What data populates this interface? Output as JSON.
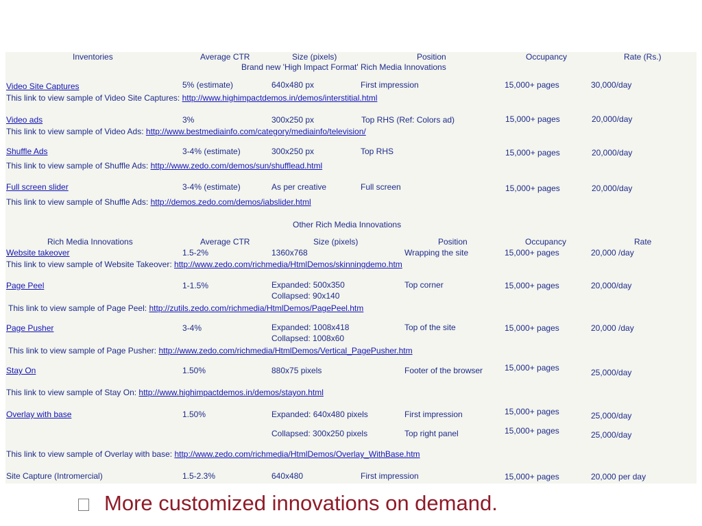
{
  "section1": {
    "headers": {
      "inventories": "Inventories",
      "ctr": "Average CTR",
      "size": "Size (pixels)",
      "position": "Position",
      "occupancy": "Occupancy",
      "rate": "Rate (Rs.)"
    },
    "title": "Brand new 'High Impact Format' Rich Media Innovations",
    "rows": [
      {
        "name": "Video Site Captures",
        "ctr": "5% (estimate)",
        "size": "640x480 px",
        "position": "First impression",
        "occupancy": "15,000+ pages",
        "rate": "30,000/day",
        "link_prefix": "This link to view sample of Video Site Captures:",
        "link_url": "http://www.highimpactdemos.in/demos/interstitial.html"
      },
      {
        "name": "Video ads",
        "ctr": "3%",
        "size": "300x250 px",
        "position": "Top RHS (Ref: Colors ad)",
        "occupancy": "15,000+ pages",
        "rate": "20,000/day",
        "link_prefix": "This link to view sample of Video Ads:",
        "link_url": "http://www.bestmediainfo.com/category/mediainfo/television/"
      },
      {
        "name": "Shuffle Ads",
        "ctr": "3-4% (estimate)",
        "size": "300x250 px",
        "position": "Top RHS",
        "occupancy": "15,000+ pages",
        "rate": "20,000/day",
        "link_prefix": "This link to view sample of Shuffle Ads:",
        "link_url": "http://www.zedo.com/demos/sun/shufflead.html"
      },
      {
        "name": "Full screen slider",
        "ctr": "3-4% (estimate)",
        "size": "As per creative",
        "position": "Full screen",
        "occupancy": "15,000+ pages",
        "rate": "20,000/day",
        "link_prefix": "This link to view sample of Shuffle Ads:",
        "link_url": "http://demos.zedo.com/demos/iabslider.html"
      }
    ]
  },
  "section2": {
    "title": "Other Rich Media Innovations",
    "headers": {
      "innovations": "Rich Media Innovations",
      "ctr": "Average CTR",
      "size": "Size (pixels)",
      "position": "Position",
      "occupancy": "Occupancy",
      "rate": "Rate"
    },
    "website_takeover": {
      "name": "Website takeover",
      "ctr": "1.5-2%",
      "size": "1360x768",
      "position": "Wrapping the site",
      "occupancy": "15,000+ pages",
      "rate": "20,000 /day",
      "link_prefix": "This link to view sample of Website Takeover:",
      "link_url": "http://www.zedo.com/richmedia/HtmlDemos/skinningdemo.htm"
    },
    "page_peel": {
      "name": "Page Peel",
      "ctr": "1-1.5%",
      "size_expanded": "Expanded: 500x350",
      "size_collapsed": "Collapsed: 90x140",
      "position": "Top corner",
      "occupancy": "15,000+ pages",
      "rate": "20,000/day",
      "link_prefix": "This link to view sample of Page Peel:",
      "link_url": "http://zutils.zedo.com/richmedia/HtmlDemos/PagePeel.htm"
    },
    "page_pusher": {
      "name": "Page Pusher",
      "ctr": "3-4%",
      "size_expanded": "Expanded: 1008x418",
      "size_collapsed": "Collapsed: 1008x60",
      "position": "Top of the site",
      "occupancy": "15,000+ pages",
      "rate": "20,000 /day",
      "link_prefix": "This link to view sample of Page Pusher:",
      "link_url": "http://www.zedo.com/richmedia/HtmlDemos/Vertical_PagePusher.htm"
    },
    "stay_on": {
      "name": "Stay On",
      "ctr": "1.50%",
      "size": "880x75 pixels",
      "position": "Footer of the browser",
      "occupancy": "15,000+ pages",
      "rate": "25,000/day",
      "link_prefix": "This link to view sample of Stay On:",
      "link_url": "http://www.highimpactdemos.in/demos/stayon.html"
    },
    "overlay": {
      "name": "Overlay with base",
      "ctr": "1.50%",
      "size_expanded": "Expanded: 640x480 pixels",
      "position_expanded": "First impression",
      "occupancy_1": "15,000+ pages",
      "rate_1": "25,000/day",
      "size_collapsed": "Collapsed: 300x250 pixels",
      "position_collapsed": "Top right panel",
      "occupancy_2": "15,000+ pages",
      "rate_2": "25,000/day",
      "link_prefix": "This link to view sample of Overlay with base:",
      "link_url": "http://www.zedo.com/richmedia/HtmlDemos/Overlay_WithBase.htm"
    },
    "site_capture": {
      "name": "Site Capture (Intromercial)",
      "ctr": "1.5-2.3%",
      "size": "640x480",
      "position": "First impression",
      "occupancy": "15,000+ pages",
      "rate": "20,000 per day"
    }
  },
  "footer": {
    "text": "More customized innovations on demand."
  }
}
